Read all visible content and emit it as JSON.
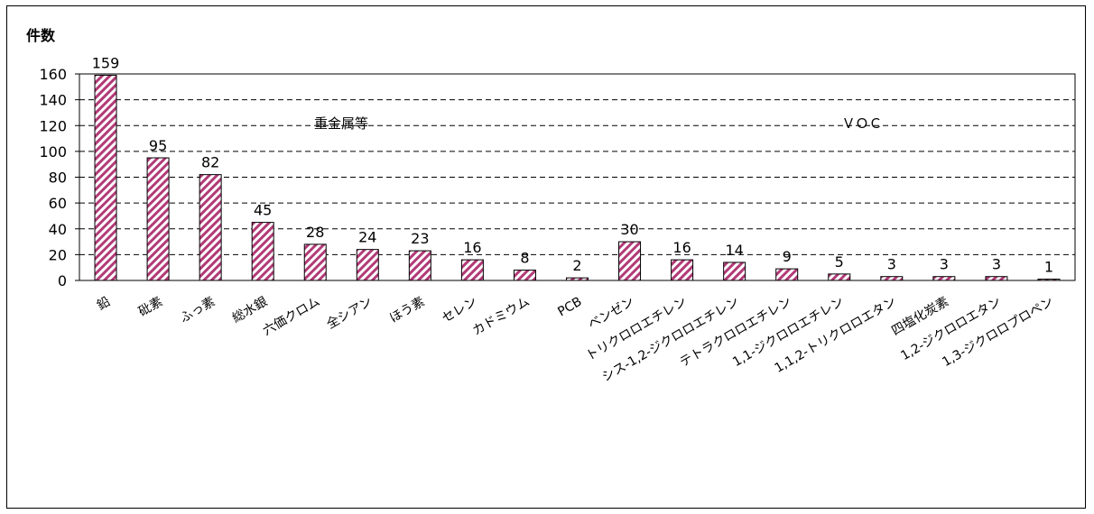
{
  "chart_data": {
    "type": "bar",
    "ylabel": "件数",
    "ylim": [
      0,
      160
    ],
    "yticks": [
      0,
      20,
      40,
      60,
      80,
      100,
      120,
      140,
      160
    ],
    "grid": "dashed horizontal",
    "categories": [
      "鉛",
      "砒素",
      "ふっ素",
      "総水銀",
      "六価クロム",
      "全シアン",
      "ほう素",
      "セレン",
      "カドミウム",
      "PCB",
      "ベンゼン",
      "トリクロロエチレン",
      "シス-1,2-ジクロロエチレン",
      "テトラクロロエチレン",
      "1,1-ジクロロエチレン",
      "1,1,2-トリクロロエタン",
      "四塩化炭素",
      "1,2-ジクロロエタン",
      "1,3-ジクロロプロペン"
    ],
    "values": [
      159,
      95,
      82,
      45,
      28,
      24,
      23,
      16,
      8,
      2,
      30,
      16,
      14,
      9,
      5,
      3,
      3,
      3,
      1
    ],
    "annotations": [
      "重金属等",
      "ＶＯＣ"
    ],
    "colors": {
      "bar_stripe": "#b23a78",
      "bar_bg": "#ffffff",
      "grid": "#000000"
    }
  }
}
